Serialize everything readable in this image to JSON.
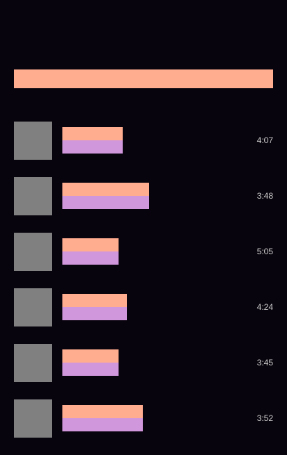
{
  "colors": {
    "background": "#08040d",
    "accent_peach": "#ffac8f",
    "accent_lilac": "#d197dc",
    "thumbnail_gray": "#808080",
    "duration_text": "#c9c9c9"
  },
  "tracks": [
    {
      "duration": "4:07"
    },
    {
      "duration": "3:48"
    },
    {
      "duration": "5:05"
    },
    {
      "duration": "4:24"
    },
    {
      "duration": "3:45"
    },
    {
      "duration": "3:52"
    }
  ]
}
